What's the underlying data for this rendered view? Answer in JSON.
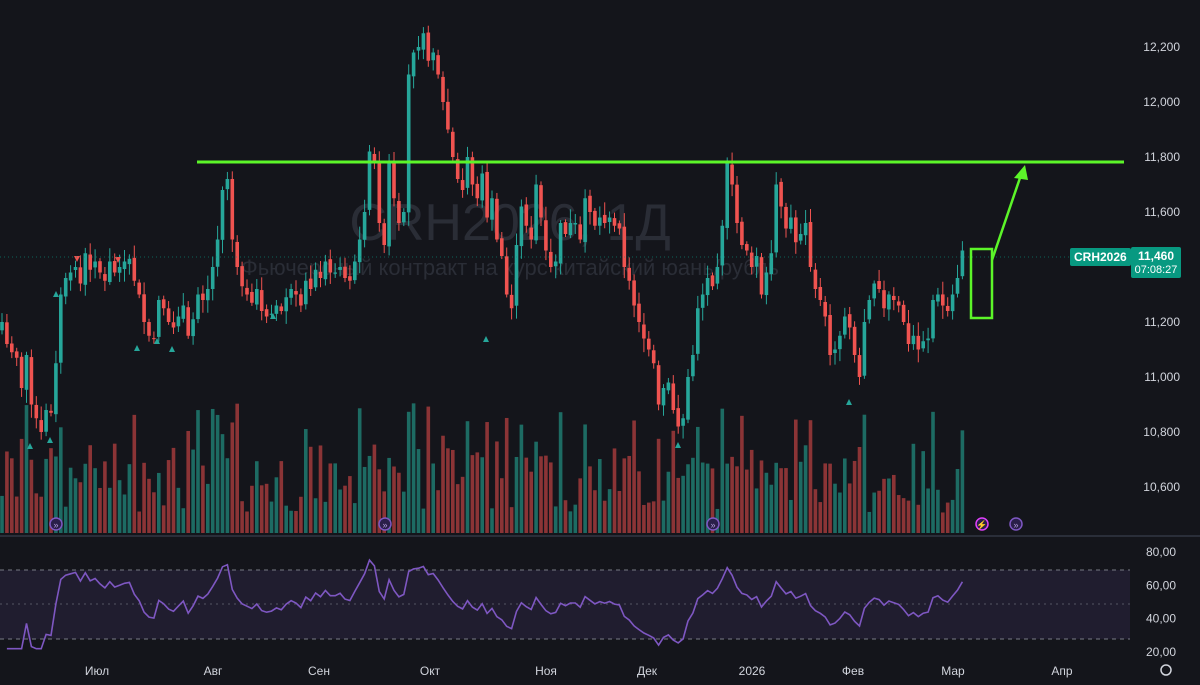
{
  "chart_data": [
    {
      "type": "candlestick",
      "ticker": "CRH2026",
      "watermark": {
        "symbol": "CRH2026, 1Д",
        "description": "Фьючерсный контракт на курс китайский юань/рубль"
      },
      "price_axis": {
        "ticks": [
          "12,200",
          "12,000",
          "11,800",
          "11,600",
          "11,200",
          "11,000",
          "10,800",
          "10,600"
        ],
        "range": [
          10450,
          12320
        ]
      },
      "time_axis": {
        "labels": [
          "Июл",
          "Авг",
          "Сен",
          "Окт",
          "Ноя",
          "Дек",
          "2026",
          "Фев",
          "Мар",
          "Апр"
        ]
      },
      "last_price": "11,460",
      "countdown": "07:08:27",
      "resistance_level": 11790,
      "series_note": "approximate daily OHLC path read from the picture",
      "closes": [
        11200,
        11120,
        11090,
        11070,
        10960,
        11080,
        10900,
        10850,
        10800,
        10880,
        10870,
        11050,
        11300,
        11360,
        11380,
        11400,
        11340,
        11450,
        11390,
        11420,
        11380,
        11350,
        11420,
        11380,
        11400,
        11420,
        11430,
        11350,
        11300,
        11200,
        11150,
        11140,
        11280,
        11250,
        11200,
        11180,
        11220,
        11260,
        11150,
        11210,
        11300,
        11280,
        11320,
        11400,
        11500,
        11680,
        11720,
        11500,
        11400,
        11330,
        11300,
        11270,
        11320,
        11240,
        11220,
        11230,
        11260,
        11240,
        11290,
        11320,
        11300,
        11260,
        11350,
        11320,
        11390,
        11360,
        11420,
        11380,
        11380,
        11400,
        11360,
        11350,
        11420,
        11500,
        11600,
        11820,
        11780,
        11560,
        11480,
        11780,
        11650,
        11560,
        11600,
        12100,
        12180,
        12200,
        12250,
        12150,
        12180,
        12100,
        12000,
        11900,
        11800,
        11720,
        11680,
        11800,
        11700,
        11650,
        11740,
        11580,
        11650,
        11500,
        11440,
        11300,
        11250,
        11480,
        11620,
        11550,
        11500,
        11700,
        11580,
        11460,
        11400,
        11420,
        11560,
        11520,
        11560,
        11560,
        11500,
        11650,
        11600,
        11550,
        11580,
        11560,
        11580,
        11550,
        11540,
        11400,
        11350,
        11260,
        11200,
        11140,
        11100,
        11050,
        10900,
        10960,
        10980,
        10880,
        10820,
        10850,
        11000,
        11080,
        11250,
        11300,
        11360,
        11330,
        11400,
        11550,
        11780,
        11700,
        11560,
        11480,
        11460,
        11400,
        11440,
        11300,
        11380,
        11450,
        11700,
        11620,
        11540,
        11580,
        11490,
        11520,
        11560,
        11400,
        11320,
        11280,
        11220,
        11080,
        11100,
        11150,
        11220,
        11180,
        11080,
        11000,
        11200,
        11280,
        11340,
        11320,
        11250,
        11300,
        11280,
        11260,
        11200,
        11120,
        11150,
        11100,
        11130,
        11140,
        11280,
        11300,
        11260,
        11240,
        11300,
        11360,
        11460
      ],
      "rsi_axis": {
        "ticks": [
          "80,00",
          "60,00",
          "40,00",
          "20,00"
        ],
        "range": [
          20,
          80
        ],
        "bands": [
          30,
          70
        ]
      }
    }
  ]
}
